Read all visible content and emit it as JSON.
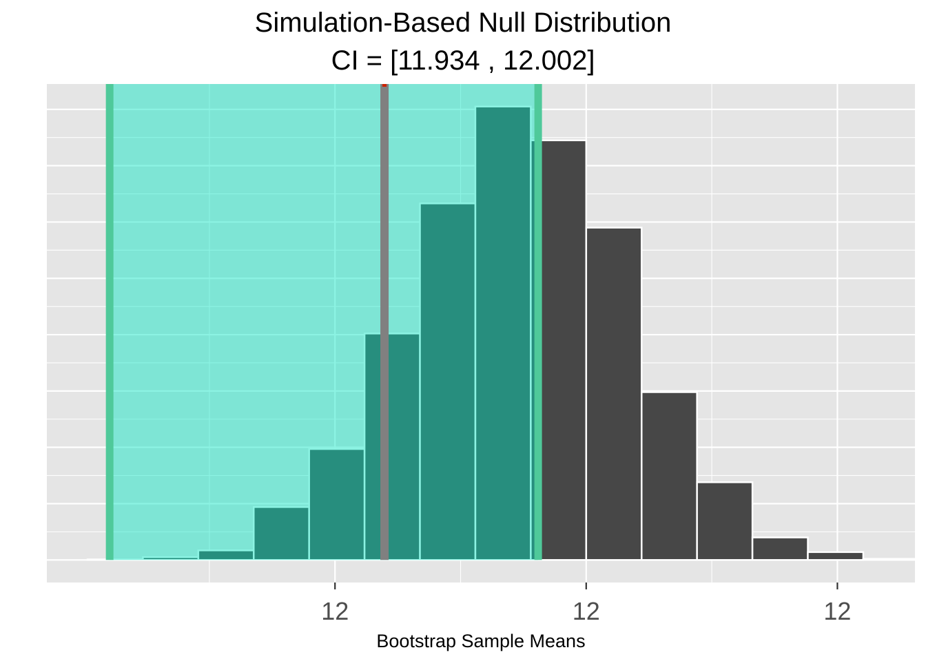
{
  "title_line_1": "Simulation-Based Null Distribution",
  "title_line_2": "CI = [11.934 , 12.002]",
  "colors": {
    "panel_bg": "#e5e5e5",
    "grid": "#ffffff",
    "bar_fill": "#474747",
    "bar_edge": "#ffffff",
    "ci_shade": "#00e5c0",
    "ci_shade_opacity": 0.45,
    "ci_line": "#4fc99a",
    "observed_line": "#808080",
    "observed_accent": "#cc2200",
    "tick_text": "#4d4d4d"
  },
  "chart_data": {
    "type": "bar",
    "subtype": "histogram",
    "title": "Simulation-Based Null Distribution",
    "subtitle": "CI = [11.934 , 12.002]",
    "xlabel": "Bootstrap Sample Means",
    "ylabel": "",
    "xlim": [
      11.9125,
      12.03
    ],
    "ylim": [
      -40,
      845
    ],
    "x_ticks": [
      11.9515,
      11.9855,
      12.0195
    ],
    "x_tick_labels": [
      "12",
      "12",
      "12"
    ],
    "x_minor_ticks": [
      11.9345,
      11.9685,
      12.0025,
      12.0365
    ],
    "y_ticks": [
      0,
      100,
      200,
      300,
      400,
      500,
      600,
      700,
      800
    ],
    "y_tick_labels": [],
    "grid": true,
    "bins": [
      {
        "x0": 11.918,
        "x1": 11.9255,
        "count": 1
      },
      {
        "x0": 11.9255,
        "x1": 11.933,
        "count": 5
      },
      {
        "x0": 11.933,
        "x1": 11.9405,
        "count": 17
      },
      {
        "x0": 11.9405,
        "x1": 11.948,
        "count": 94
      },
      {
        "x0": 11.948,
        "x1": 11.9555,
        "count": 197
      },
      {
        "x0": 11.9555,
        "x1": 11.963,
        "count": 402
      },
      {
        "x0": 11.963,
        "x1": 11.9705,
        "count": 633
      },
      {
        "x0": 11.9705,
        "x1": 11.978,
        "count": 805
      },
      {
        "x0": 11.978,
        "x1": 11.9855,
        "count": 745
      },
      {
        "x0": 11.9855,
        "x1": 11.993,
        "count": 590
      },
      {
        "x0": 11.993,
        "x1": 12.0005,
        "count": 298
      },
      {
        "x0": 12.0005,
        "x1": 12.008,
        "count": 138
      },
      {
        "x0": 12.008,
        "x1": 12.0155,
        "count": 40
      },
      {
        "x0": 12.0155,
        "x1": 12.023,
        "count": 14
      },
      {
        "x0": 12.023,
        "x1": 12.0305,
        "count": 2
      }
    ],
    "ci": {
      "lower": 11.934,
      "upper": 12.002
    },
    "ci_drawn_range": [
      11.921,
      11.979
    ],
    "observed_value": 11.9582
  }
}
